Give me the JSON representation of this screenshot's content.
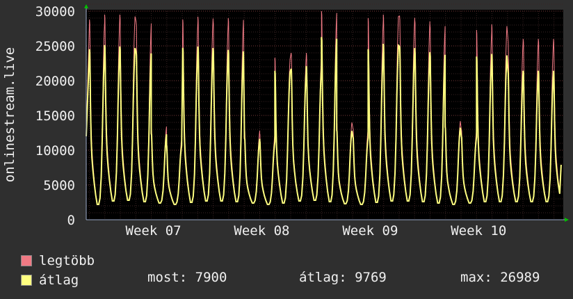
{
  "chart_data": {
    "type": "line",
    "ylabel": "onlinestream.live",
    "ylim": [
      0,
      30000
    ],
    "yticks": [
      0,
      5000,
      10000,
      15000,
      20000,
      25000,
      30000
    ],
    "ytick_labels": [
      "0",
      "5000",
      "10000",
      "15000",
      "20000",
      "25000",
      "30000"
    ],
    "xtick_labels": [
      "Week 07",
      "Week 08",
      "Week 09",
      "Week 10"
    ],
    "x_range_weeks": [
      6.4,
      10.8
    ],
    "xtick_positions_weeks": [
      7,
      8,
      9,
      10
    ],
    "grid": true,
    "daily_peaks": {
      "days": [
        6.43,
        6.57,
        6.71,
        6.86,
        7.0,
        7.14,
        7.29,
        7.43,
        7.57,
        7.71,
        7.86,
        8.0,
        8.14,
        8.29,
        8.43,
        8.57,
        8.71,
        8.86,
        9.0,
        9.14,
        9.29,
        9.43,
        9.57,
        9.71,
        9.86,
        10.0,
        10.14,
        10.29,
        10.43,
        10.57,
        10.71
      ],
      "max": [
        28800,
        29500,
        29500,
        28500,
        13500,
        11700,
        28800,
        29200,
        28700,
        29000,
        12900,
        12400,
        23300,
        24000,
        24000,
        30000,
        14100,
        13200,
        29000,
        29500,
        29300,
        28800,
        28100,
        14300,
        13000,
        27300,
        28100,
        26000,
        26000,
        26000,
        26000
      ],
      "avg": [
        25200,
        25800,
        25600,
        24800,
        12700,
        11000,
        25400,
        25600,
        25200,
        25100,
        12000,
        11600,
        22000,
        22300,
        22700,
        27000,
        13200,
        12200,
        25200,
        26000,
        25600,
        25000,
        24600,
        13700,
        12300,
        24100,
        24500,
        22000,
        22000,
        22000,
        22000
      ],
      "min": [
        2200,
        2700,
        2800,
        2600,
        2400,
        2200,
        2500,
        2700,
        2700,
        2600,
        2400,
        2200,
        2400,
        2700,
        2800,
        2600,
        2300,
        2200,
        2500,
        2700,
        2700,
        2600,
        2400,
        2200,
        2400,
        2600,
        2600,
        2600,
        2600,
        2600,
        2600
      ]
    },
    "series": [
      {
        "name": "legtöbb",
        "color": "#f07a84"
      },
      {
        "name": "átlag",
        "color": "#ffff80"
      }
    ]
  },
  "legend": {
    "max_label": "legtöbb",
    "avg_label": "átlag",
    "max_color": "#f07a84",
    "avg_color": "#ffff80"
  },
  "stats": {
    "current": "most: 7900",
    "average": "átlag: 9769",
    "maximum": "max: 26989"
  }
}
